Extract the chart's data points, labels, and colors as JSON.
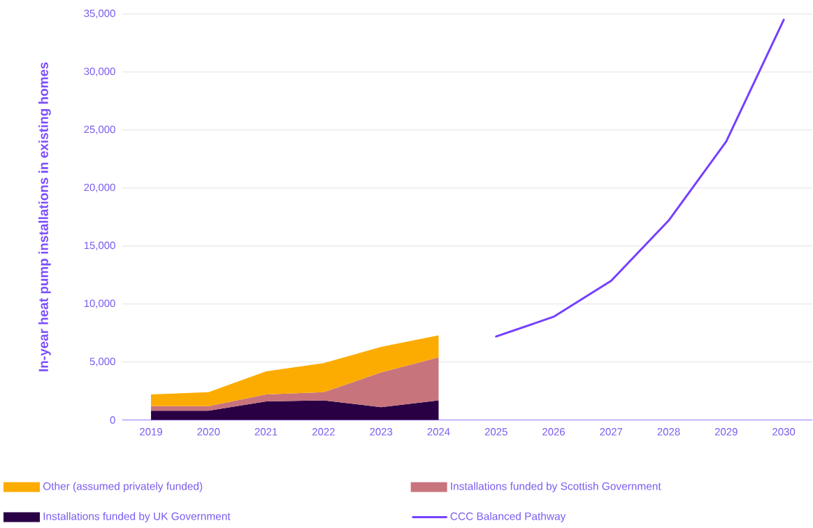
{
  "chart_data": {
    "type": "area",
    "ylabel": "In-year heat pump installations in existing homes",
    "categories": [
      "2019",
      "2020",
      "2021",
      "2022",
      "2023",
      "2024",
      "2025",
      "2026",
      "2027",
      "2028",
      "2029",
      "2030"
    ],
    "stacked": true,
    "grid": "y",
    "legend": "bottom",
    "ylim": [
      0,
      35000
    ],
    "yticks": [
      0,
      {
        "value": 5000,
        "label": "5,000"
      },
      {
        "value": 10000,
        "label": "10,000"
      },
      {
        "value": 15000,
        "label": "15,000"
      },
      {
        "value": 20000,
        "label": "20,000"
      },
      {
        "value": 25000,
        "label": "25,000"
      },
      {
        "value": 30000,
        "label": "30,000"
      },
      {
        "value": 35000,
        "label": "35,000"
      }
    ],
    "series": [
      {
        "name": "Installations funded by UK Government",
        "color": "#2a0044",
        "values": [
          800,
          800,
          1600,
          1700,
          1100,
          1700,
          null,
          null,
          null,
          null,
          null,
          null
        ]
      },
      {
        "name": "Installations funded by Scottish Government",
        "color": "#c8747c",
        "values": [
          400,
          400,
          600,
          700,
          3000,
          3700,
          null,
          null,
          null,
          null,
          null,
          null
        ]
      },
      {
        "name": "Other (assumed privately funded)",
        "color": "#fcac00",
        "values": [
          1000,
          1200,
          2000,
          2500,
          2200,
          1900,
          null,
          null,
          null,
          null,
          null,
          null
        ]
      },
      {
        "name": "CCC Balanced Pathway",
        "type": "line",
        "color": "#7540ff",
        "values": [
          null,
          null,
          null,
          null,
          null,
          null,
          7200,
          8900,
          12000,
          17200,
          24000,
          34500
        ]
      }
    ]
  }
}
